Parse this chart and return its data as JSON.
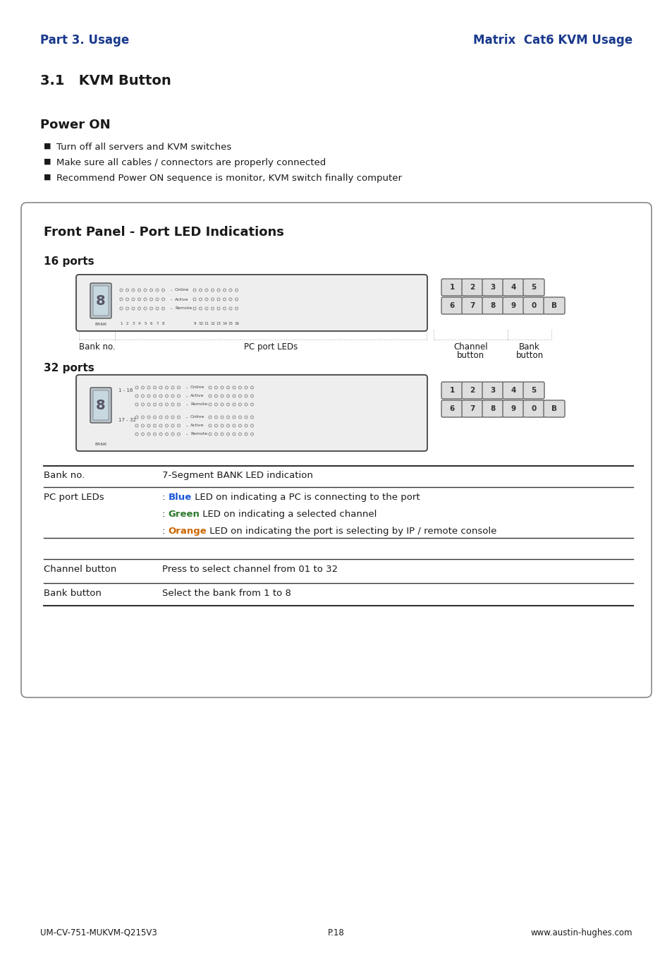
{
  "page_title_left": "Part 3. Usage",
  "page_title_right": "Matrix  Cat6 KVM Usage",
  "section_title": "3.1   KVM Button",
  "power_on_title": "Power ON",
  "bullet_points": [
    "Turn off all servers and KVM switches",
    "Make sure all cables / connectors are properly connected",
    "Recommend Power ON sequence is monitor, KVM switch finally computer"
  ],
  "front_panel_title": "Front Panel - Port LED Indications",
  "ports_16_title": "16 ports",
  "ports_32_title": "32 ports",
  "footer_left": "UM-CV-751-MUKVM-Q215V3",
  "footer_center": "P.18",
  "footer_right": "www.austin-hughes.com",
  "title_color": "#1a3a8c",
  "text_color": "#1a1a1a",
  "bg_color": "#ffffff"
}
